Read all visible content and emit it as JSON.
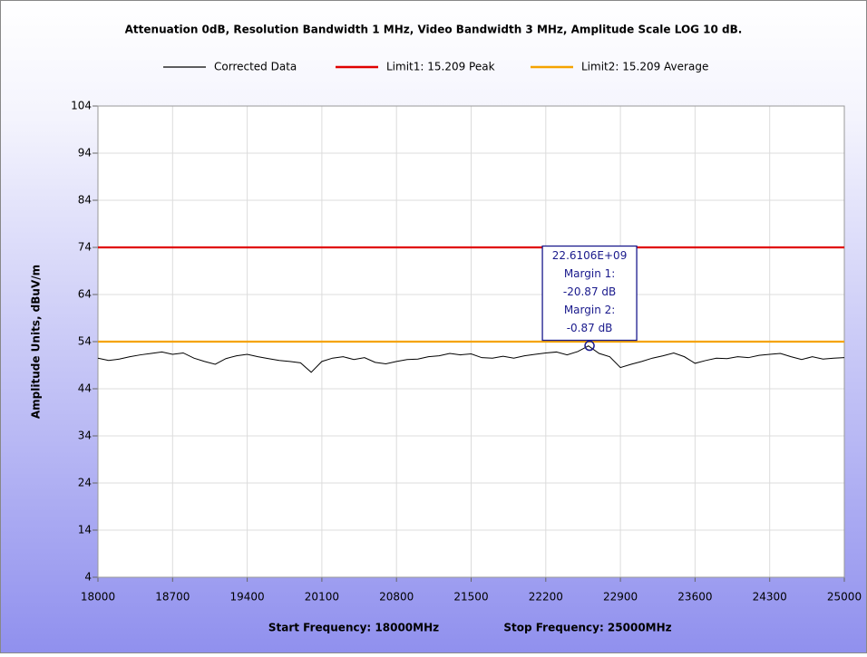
{
  "chart_data": {
    "type": "line",
    "title": "Attenuation 0dB, Resolution Bandwidth 1 MHz, Video Bandwidth 3 MHz, Amplitude Scale LOG 10 dB.",
    "ylabel": "Amplitude Units, dBuV/m",
    "xlabel_start": "Start Frequency: 18000MHz",
    "xlabel_stop": "Stop Frequency: 25000MHz",
    "xlim": [
      18000,
      25000
    ],
    "xticks": [
      18000,
      18700,
      19400,
      20100,
      20800,
      21500,
      22200,
      22900,
      23600,
      24300,
      25000
    ],
    "ylim": [
      4,
      104
    ],
    "yticks": [
      4,
      14,
      24,
      34,
      44,
      54,
      64,
      74,
      84,
      94,
      104
    ],
    "grid": true,
    "series": [
      {
        "name": "Corrected Data",
        "color": "#000000",
        "x": [
          18000,
          18100,
          18200,
          18300,
          18400,
          18500,
          18600,
          18700,
          18800,
          18900,
          19000,
          19100,
          19200,
          19300,
          19400,
          19500,
          19600,
          19700,
          19800,
          19900,
          20000,
          20100,
          20200,
          20300,
          20400,
          20500,
          20600,
          20700,
          20800,
          20900,
          21000,
          21100,
          21200,
          21300,
          21400,
          21500,
          21600,
          21700,
          21800,
          21900,
          22000,
          22100,
          22200,
          22300,
          22400,
          22500,
          22600,
          22700,
          22800,
          22900,
          23000,
          23100,
          23200,
          23300,
          23400,
          23500,
          23600,
          23700,
          23800,
          23900,
          24000,
          24100,
          24200,
          24300,
          24400,
          24500,
          24600,
          24700,
          24800,
          24900,
          25000
        ],
        "values": [
          50.5,
          50,
          50.3,
          50.8,
          51.2,
          51.5,
          51.8,
          51.3,
          51.6,
          50.5,
          49.8,
          49.2,
          50.4,
          51,
          51.3,
          50.8,
          50.4,
          50,
          49.8,
          49.5,
          47.5,
          49.8,
          50.5,
          50.8,
          50.2,
          50.6,
          49.6,
          49.3,
          49.8,
          50.2,
          50.3,
          50.8,
          51,
          51.5,
          51.2,
          51.4,
          50.6,
          50.5,
          50.9,
          50.5,
          51,
          51.3,
          51.6,
          51.8,
          51.2,
          51.9,
          53.1,
          51.5,
          50.8,
          48.5,
          49.2,
          49.8,
          50.5,
          51,
          51.6,
          50.8,
          49.4,
          50,
          50.5,
          50.4,
          50.8,
          50.6,
          51.1,
          51.3,
          51.5,
          50.8,
          50.2,
          50.8,
          50.3,
          50.5,
          50.6
        ]
      },
      {
        "name": "Limit1: 15.209 Peak",
        "color": "#e00000",
        "x": [
          18000,
          25000
        ],
        "values": [
          74,
          74
        ]
      },
      {
        "name": "Limit2: 15.209 Average",
        "color": "#f5a300",
        "x": [
          18000,
          25000
        ],
        "values": [
          54,
          54
        ]
      }
    ],
    "marker": {
      "x": 22610.6,
      "y": 53.13
    },
    "annotation": {
      "lines": [
        "22.6106E+09",
        "Margin 1:",
        "-20.87 dB",
        "Margin 2:",
        "-0.87 dB"
      ]
    }
  }
}
